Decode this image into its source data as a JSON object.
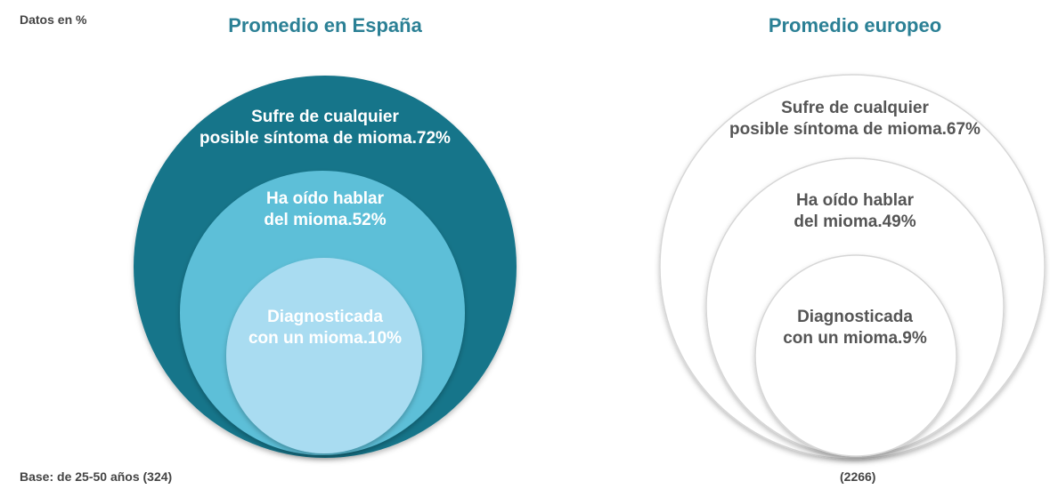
{
  "note": "Datos en %",
  "chart_data": [
    {
      "type": "nested-circles",
      "title": "Promedio en España",
      "base": "Base: de 25-50 años (324)",
      "categories": [
        "Sufre de cualquier\nposible síntoma de mioma.",
        "Ha oído hablar\ndel mioma.",
        "Diagnosticada\ncon un mioma."
      ],
      "values": [
        72,
        52,
        10
      ],
      "value_labels": [
        "72%",
        "52%",
        "10%"
      ],
      "colors": [
        "#17758a",
        "#5dbfd8",
        "#a9dcf1"
      ],
      "text_color": "#ffffff",
      "stroke": "none"
    },
    {
      "type": "nested-circles",
      "title": "Promedio europeo",
      "base": "(2266)",
      "categories": [
        "Sufre de cualquier\nposible síntoma de mioma.",
        "Ha oído hablar\ndel mioma.",
        "Diagnosticada\ncon un mioma."
      ],
      "values": [
        67,
        49,
        9
      ],
      "value_labels": [
        "67%",
        "49%",
        "9%"
      ],
      "colors": [
        "#ffffff",
        "#ffffff",
        "#ffffff"
      ],
      "text_color": "#555555",
      "stroke": "#d6d6d6"
    }
  ]
}
